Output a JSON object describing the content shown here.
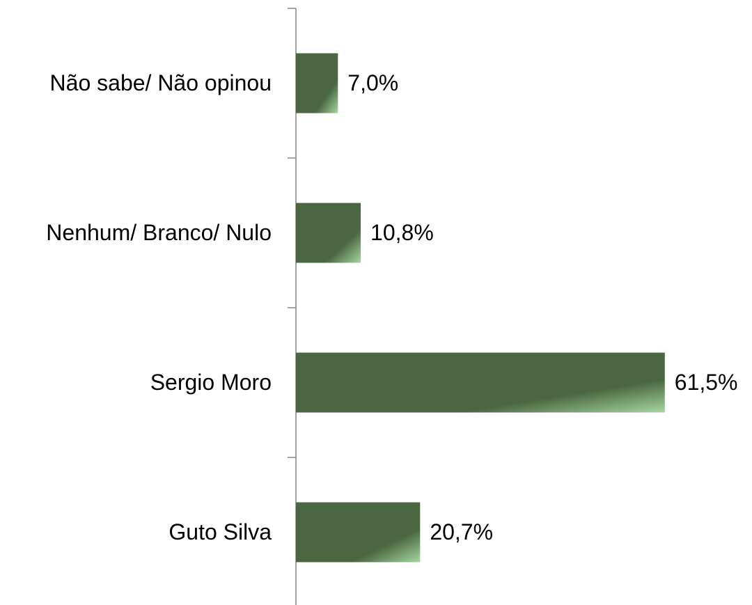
{
  "chart_data": {
    "type": "hbar",
    "categories": [
      "Não sabe/ Não opinou",
      "Nenhum/ Branco/ Nulo",
      "Sergio Moro",
      "Guto Silva"
    ],
    "values": [
      7.0,
      10.8,
      61.5,
      20.7
    ],
    "value_labels": [
      "7,0%",
      "10,8%",
      "61,5%",
      "20,7%"
    ],
    "color": "#4a6741",
    "xlim": [
      0,
      70
    ]
  }
}
